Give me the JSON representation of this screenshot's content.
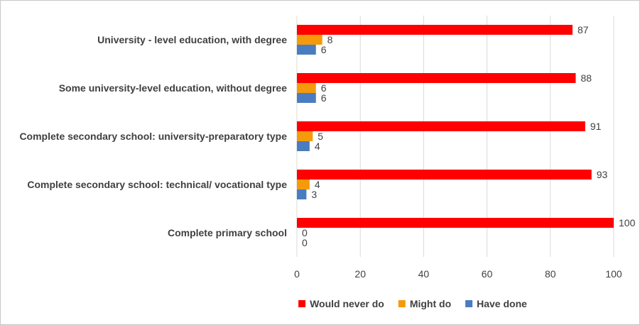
{
  "chart_data": {
    "type": "bar",
    "orientation": "horizontal",
    "title": "",
    "xlabel": "",
    "ylabel": "",
    "xlim": [
      0,
      100
    ],
    "xticks": [
      0,
      20,
      40,
      60,
      80,
      100
    ],
    "grid": "vertical",
    "legend_position": "bottom",
    "categories": [
      "University - level education, with degree",
      "Some university-level education, without degree",
      "Complete secondary school: university-preparatory type",
      "Complete secondary school: technical/ vocational type",
      "Complete primary school"
    ],
    "series": [
      {
        "name": "Would never do",
        "color": "#ff0000",
        "values": [
          87,
          88,
          91,
          93,
          100
        ]
      },
      {
        "name": "Might do",
        "color": "#f59a0b",
        "values": [
          8,
          6,
          5,
          4,
          0
        ]
      },
      {
        "name": "Have done",
        "color": "#4a7cc1",
        "values": [
          6,
          6,
          4,
          3,
          0
        ]
      }
    ]
  }
}
